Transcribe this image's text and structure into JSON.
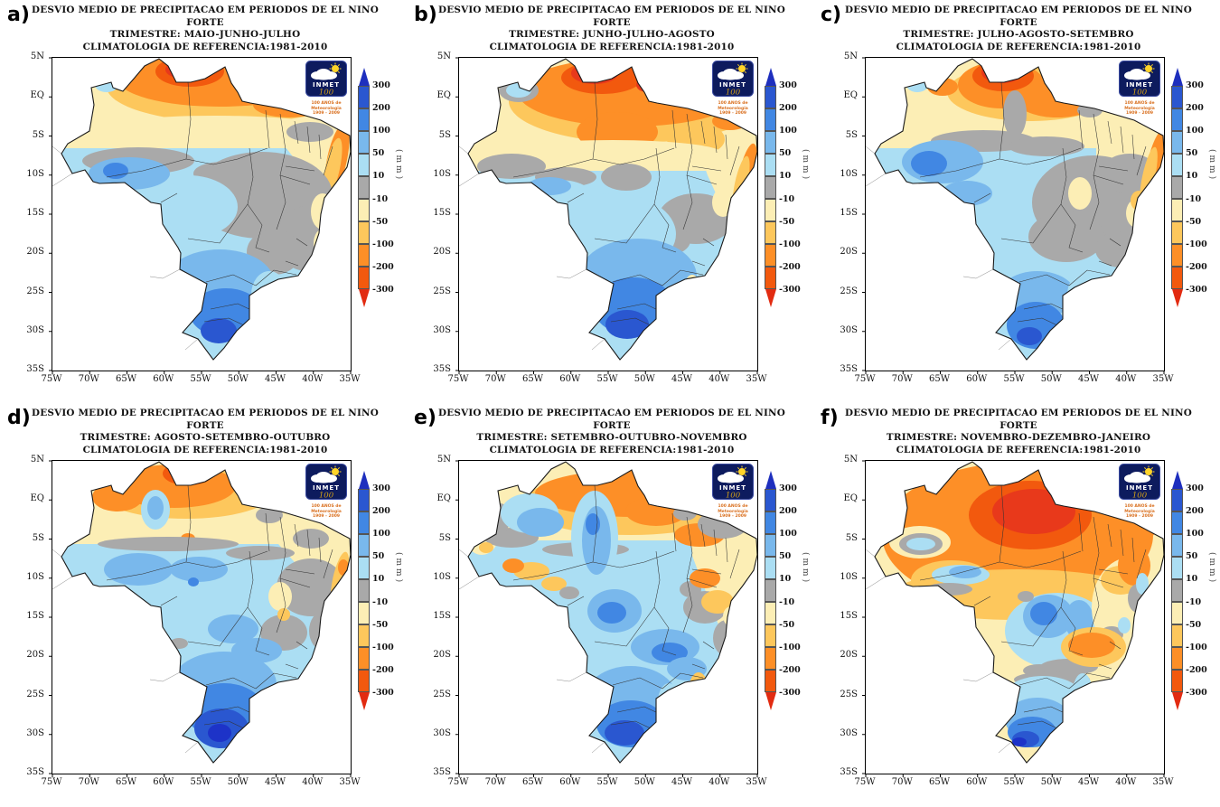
{
  "panels": [
    {
      "label": "a)",
      "title_line1": "DESVIO MEDIO DE PRECIPITACAO EM PERIODOS DE EL NINO FORTE",
      "title_line2": "TRIMESTRE: MAIO-JUNHO-JULHO",
      "title_line3": "CLIMATOLOGIA DE REFERENCIA:1981-2010"
    },
    {
      "label": "b)",
      "title_line1": "DESVIO MEDIO DE PRECIPITACAO EM PERIODOS DE EL NINO FORTE",
      "title_line2": "TRIMESTRE: JUNHO-JULHO-AGOSTO",
      "title_line3": "CLIMATOLOGIA DE REFERENCIA:1981-2010"
    },
    {
      "label": "c)",
      "title_line1": "DESVIO MEDIO DE PRECIPITACAO EM PERIODOS DE EL NINO FORTE",
      "title_line2": "TRIMESTRE: JULHO-AGOSTO-SETEMBRO",
      "title_line3": "CLIMATOLOGIA DE REFERENCIA:1981-2010"
    },
    {
      "label": "d)",
      "title_line1": "DESVIO MEDIO DE PRECIPITACAO EM PERIODOS DE EL NINO FORTE",
      "title_line2": "TRIMESTRE: AGOSTO-SETEMBRO-OUTUBRO",
      "title_line3": "CLIMATOLOGIA DE REFERENCIA:1981-2010"
    },
    {
      "label": "e)",
      "title_line1": "DESVIO MEDIO DE PRECIPITACAO EM PERIODOS DE EL NINO FORTE",
      "title_line2": "TRIMESTRE: SETEMBRO-OUTUBRO-NOVEMBRO",
      "title_line3": "CLIMATOLOGIA DE REFERENCIA:1981-2010"
    },
    {
      "label": "f)",
      "title_line1": "DESVIO MEDIO DE PRECIPITACAO EM PERIODOS DE EL NINO FORTE",
      "title_line2": "TRIMESTRE: NOVEMBRO-DEZEMBRO-JANEIRO",
      "title_line3": "CLIMATOLOGIA DE REFERENCIA:1981-2010"
    }
  ],
  "axes": {
    "lat": [
      "5N",
      "EQ",
      "5S",
      "10S",
      "15S",
      "20S",
      "25S",
      "30S",
      "35S"
    ],
    "lon": [
      "75W",
      "70W",
      "65W",
      "60W",
      "55W",
      "50W",
      "45W",
      "40W",
      "35W"
    ]
  },
  "colorbar": {
    "unit": "(mm)",
    "tick_labels": [
      "300",
      "200",
      "100",
      "50",
      "10",
      "-10",
      "-50",
      "-100",
      "-200",
      "-300"
    ],
    "segment_colors": [
      "#2a57d0",
      "#4187e3",
      "#79b8ec",
      "#abdef3",
      "#a9a9a9",
      "#fceeb5",
      "#fdc75c",
      "#fd8f27",
      "#f2590e"
    ],
    "arrow_top_color": "#1e2fbe",
    "arrow_bottom_color": "#e22b11"
  },
  "logo": {
    "title": "INMET",
    "number": "100",
    "caption": [
      "100 ANOS de",
      "Meteorologia",
      "1909 - 2009"
    ]
  },
  "chart_data": {
    "type": "heatmap",
    "title": "DESVIO MEDIO DE PRECIPITACAO EM PERIODOS DE EL NINO FORTE",
    "subtitle": "CLIMATOLOGIA DE REFERENCIA:1981-2010",
    "unit": "mm",
    "levels_mm": [
      -300,
      -200,
      -100,
      -50,
      -10,
      10,
      50,
      100,
      200,
      300
    ],
    "lat_range": [
      "5N",
      "35S"
    ],
    "lon_range": [
      "75W",
      "35W"
    ],
    "region": "Brazil",
    "panels": [
      {
        "id": "a",
        "trimester": "MAIO-JUNHO-JULHO",
        "pattern": "far north -200 to -300; north band -50 to -100; pale -10/-50 belt; gray neutral center-east; +10/+50 west and center; +50/+200 south with +200/+300 core in far south"
      },
      {
        "id": "b",
        "trimester": "JUNHO-JULHO-AGOSTO",
        "pattern": "strong -100/-300 across whole north with red cores near 1N; -10/-50 belt mid; neutral gray east; +10/+50 center; +100/+300 core ~25S-27S in south"
      },
      {
        "id": "c",
        "trimester": "JULHO-AGOSTO-SETEMBRO",
        "pattern": "-200/-300 core near 3N 61W; -50/-100 north; large neutral gray center-east; +10/+50 west with +100 spot ~8S 68W; +100/+200 far south"
      },
      {
        "id": "d",
        "trimester": "AGOSTO-SETEMBRO-OUTUBRO",
        "pattern": "-100/-200 north band; -10/-50 northeast; scattered gray east; +10/+50 broad center; strong +200/+300 (locally >300) core ~28S 52W"
      },
      {
        "id": "e",
        "trimester": "SETEMBRO-OUTUBRO-NOVEMBRO",
        "pattern": "-50/-100 north band; +10/+100 northwest pocket; +50/+100 tongues center; neutral/negative east; +100/+200 south core ~30S"
      },
      {
        "id": "f",
        "trimester": "NOVEMBRO-DEZEMBRO-JANEIRO",
        "pattern": "widespread -100/-300 north with red core ~4S 55W; -10/-50 east/center; +10/+100 patches center; +100/+200 far south with small >300 spot ~30S 53W"
      }
    ]
  }
}
